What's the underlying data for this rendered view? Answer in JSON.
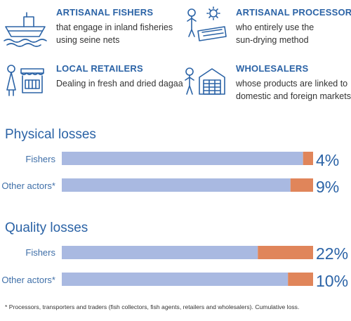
{
  "actors": [
    {
      "key": "fishers",
      "title": "ARTISANAL FISHERS",
      "lines": [
        "that engage in inland fisheries",
        "using seine nets"
      ],
      "icon": "fishing-boat-icon"
    },
    {
      "key": "processors",
      "title": "ARTISANAL PROCESSORS",
      "lines": [
        "who entirely use the",
        "sun-drying method"
      ],
      "icon": "sun-drying-processor-icon"
    },
    {
      "key": "retailers",
      "title": "LOCAL RETAILERS",
      "lines": [
        "Dealing in fresh and dried dagaa"
      ],
      "icon": "market-stall-retailer-icon"
    },
    {
      "key": "wholesalers",
      "title": "WHOLESALERS",
      "lines": [
        "whose products are linked to",
        "domestic and foreign markets"
      ],
      "icon": "warehouse-wholesaler-icon"
    }
  ],
  "chart_data": [
    {
      "type": "bar",
      "orientation": "horizontal",
      "stacked": true,
      "title": "Physical losses",
      "categories": [
        "Fishers",
        "Other actors*"
      ],
      "series": [
        {
          "values": [
            96,
            91
          ],
          "color": "#a9b9e1"
        },
        {
          "values": [
            4,
            9
          ],
          "color": "#e0855a"
        }
      ],
      "data_labels": [
        "4%",
        "9%"
      ],
      "xlim": [
        0,
        100
      ]
    },
    {
      "type": "bar",
      "orientation": "horizontal",
      "stacked": true,
      "title": "Quality losses",
      "categories": [
        "Fishers",
        "Other actors*"
      ],
      "series": [
        {
          "values": [
            78,
            90
          ],
          "color": "#a9b9e1"
        },
        {
          "values": [
            22,
            10
          ],
          "color": "#e0855a"
        }
      ],
      "data_labels": [
        "22%",
        "10%"
      ],
      "xlim": [
        0,
        100
      ]
    }
  ],
  "footnote": "* Processors, transporters and traders (fish collectors, fish agents, retailers and wholesalers). Cumulative loss."
}
